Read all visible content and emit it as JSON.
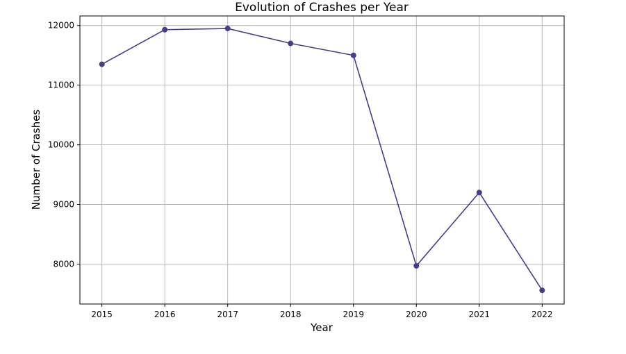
{
  "chart_data": {
    "type": "line",
    "title": "Evolution of Crashes per Year",
    "xlabel": "Year",
    "ylabel": "Number of Crashes",
    "x": [
      2015,
      2016,
      2017,
      2018,
      2019,
      2020,
      2021,
      2022
    ],
    "series": [
      {
        "name": "",
        "values": [
          11350,
          11930,
          11950,
          11700,
          11500,
          7970,
          9200,
          7560
        ],
        "color": "#483D8B"
      }
    ],
    "xlim": [
      2014.65,
      2022.35
    ],
    "ylim": [
      7330,
      12160
    ],
    "yticks": [
      8000,
      9000,
      10000,
      11000,
      12000
    ],
    "xticks": [
      2015,
      2016,
      2017,
      2018,
      2019,
      2020,
      2021,
      2022
    ],
    "grid": true,
    "marker": "circle"
  }
}
